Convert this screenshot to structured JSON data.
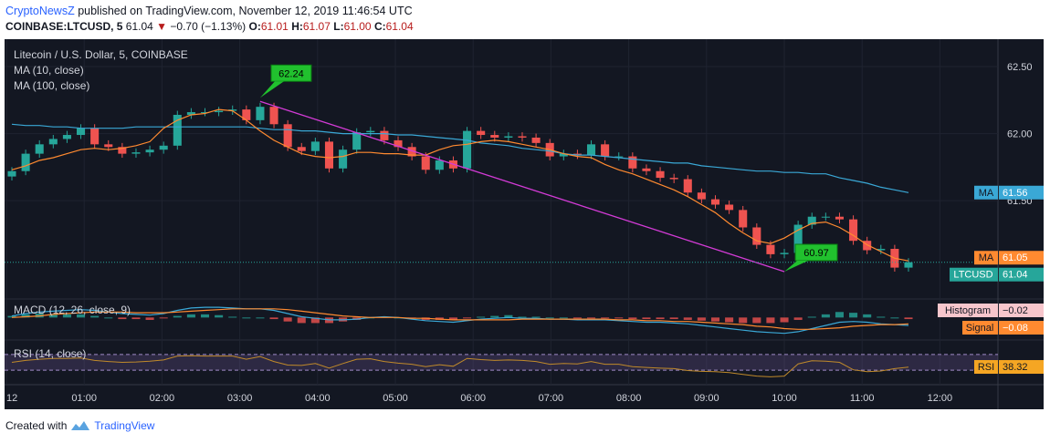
{
  "header": {
    "brand": "CryptoNewsZ",
    "published": " published on TradingView.com, November 12, 2019 11:46:54 UTC",
    "symbol": "COINBASE:LTCUSD, 5",
    "last": "61.04",
    "change": "−0.70 (−1.13%)",
    "o_label": "O:",
    "o": "61.01",
    "h_label": "H:",
    "h": "61.07",
    "l_label": "L:",
    "l": "61.00",
    "c_label": "C:",
    "c": "61.04"
  },
  "legend": {
    "title": "Litecoin / U.S. Dollar, 5, COINBASE",
    "ma10": "MA (10, close)",
    "ma100": "MA (100, close)"
  },
  "price_axis": {
    "ticks": [
      "62.50",
      "62.00",
      "61.50"
    ]
  },
  "badges": {
    "ma100": {
      "label": "MA",
      "value": "61.56"
    },
    "ma10": {
      "label": "MA",
      "value": "61.05"
    },
    "last": {
      "label": "LTCUSD",
      "value": "61.04"
    },
    "histogram": {
      "label": "Histogram",
      "value": "−0.02"
    },
    "signal": {
      "label": "Signal",
      "value": "−0.08"
    },
    "rsi": {
      "label": "RSI",
      "value": "38.32"
    }
  },
  "annotations": {
    "high": "62.24",
    "low": "60.97"
  },
  "indicators": {
    "macd_label": "MACD (12, 26, close, 9)",
    "rsi_label": "RSI (14, close)"
  },
  "time_axis": [
    "12",
    "01:00",
    "02:00",
    "03:00",
    "04:00",
    "05:00",
    "06:00",
    "07:00",
    "08:00",
    "09:00",
    "10:00",
    "11:00",
    "12:00"
  ],
  "footer": {
    "created": "Created with",
    "brand": "TradingView"
  },
  "colors": {
    "background": "#131722",
    "up": "#26a69a",
    "down": "#ef5350",
    "ma10": "#ff8a30",
    "ma100": "#3aa8d6",
    "trendline": "#d33bd6",
    "annotation": "#21c12e",
    "rsi": "#c08a2a"
  },
  "chart_data": {
    "type": "candlestick",
    "title": "Litecoin / U.S. Dollar, 5, COINBASE",
    "x_ticks": [
      "12",
      "01:00",
      "02:00",
      "03:00",
      "04:00",
      "05:00",
      "06:00",
      "07:00",
      "08:00",
      "09:00",
      "10:00",
      "11:00",
      "12:00"
    ],
    "y_ticks": [
      62.5,
      62.0,
      61.5
    ],
    "ylim": [
      60.8,
      62.65
    ],
    "last_price": 61.04,
    "ma10_last": 61.05,
    "ma100_last": 61.56,
    "period_high": 62.24,
    "period_low": 60.97,
    "close": [
      61.72,
      61.85,
      61.92,
      61.96,
      61.99,
      62.04,
      61.92,
      61.9,
      61.85,
      61.86,
      61.88,
      61.91,
      62.14,
      62.16,
      62.16,
      62.17,
      62.18,
      62.1,
      62.2,
      62.07,
      61.9,
      61.87,
      61.94,
      61.74,
      61.88,
      62.01,
      62.02,
      61.95,
      61.9,
      61.83,
      61.73,
      61.8,
      61.74,
      62.02,
      61.99,
      61.97,
      61.98,
      61.97,
      61.93,
      61.83,
      61.85,
      61.84,
      61.92,
      61.83,
      61.83,
      61.74,
      61.72,
      61.67,
      61.66,
      61.56,
      61.51,
      61.47,
      61.43,
      61.3,
      61.17,
      61.1,
      61.11,
      61.32,
      61.38,
      61.38,
      61.36,
      61.2,
      61.13,
      61.14,
      61.0,
      61.04
    ],
    "ma10": [
      61.73,
      61.76,
      61.8,
      61.82,
      61.85,
      61.88,
      61.89,
      61.88,
      61.89,
      61.91,
      61.94,
      62.04,
      62.1,
      62.14,
      62.15,
      62.18,
      62.17,
      62.1,
      62.02,
      61.95,
      61.9,
      61.85,
      61.83,
      61.82,
      61.83,
      61.86,
      61.86,
      61.85,
      61.85,
      61.84,
      61.84,
      61.88,
      61.91,
      61.92,
      61.94,
      61.95,
      61.94,
      61.92,
      61.9,
      61.88,
      61.85,
      61.83,
      61.82,
      61.77,
      61.73,
      61.7,
      61.66,
      61.62,
      61.58,
      61.53,
      61.47,
      61.41,
      61.33,
      61.26,
      61.2,
      61.18,
      61.22,
      61.28,
      61.33,
      61.34,
      61.3,
      61.24,
      61.17,
      61.12,
      61.07,
      61.05
    ],
    "ma100": [
      62.07,
      62.06,
      62.06,
      62.05,
      62.05,
      62.04,
      62.04,
      62.04,
      62.04,
      62.05,
      62.05,
      62.05,
      62.05,
      62.05,
      62.05,
      62.05,
      62.05,
      62.05,
      62.04,
      62.03,
      62.03,
      62.02,
      62.02,
      62.01,
      62.0,
      62.0,
      62.0,
      62.0,
      61.99,
      61.99,
      61.98,
      61.97,
      61.96,
      61.95,
      61.93,
      61.92,
      61.91,
      61.89,
      61.88,
      61.87,
      61.85,
      61.84,
      61.84,
      61.83,
      61.82,
      61.81,
      61.8,
      61.79,
      61.78,
      61.78,
      61.76,
      61.75,
      61.74,
      61.73,
      61.72,
      61.72,
      61.71,
      61.71,
      61.7,
      61.7,
      61.67,
      61.65,
      61.63,
      61.6,
      61.58,
      61.56
    ],
    "macd": [
      0.02,
      0.05,
      0.07,
      0.08,
      0.09,
      0.1,
      0.09,
      0.07,
      0.05,
      0.04,
      0.03,
      0.05,
      0.09,
      0.12,
      0.13,
      0.13,
      0.12,
      0.11,
      0.11,
      0.09,
      0.05,
      0.01,
      -0.01,
      -0.03,
      -0.03,
      -0.02,
      0.0,
      0.01,
      0.0,
      -0.02,
      -0.04,
      -0.05,
      -0.06,
      -0.04,
      -0.02,
      -0.01,
      0.0,
      -0.01,
      -0.01,
      -0.02,
      -0.02,
      -0.03,
      -0.03,
      -0.03,
      -0.04,
      -0.05,
      -0.06,
      -0.06,
      -0.07,
      -0.08,
      -0.1,
      -0.12,
      -0.14,
      -0.16,
      -0.18,
      -0.19,
      -0.2,
      -0.18,
      -0.14,
      -0.1,
      -0.06,
      -0.05,
      -0.06,
      -0.08,
      -0.09,
      -0.1
    ],
    "macd_signal": [
      0.0,
      0.01,
      0.02,
      0.04,
      0.05,
      0.06,
      0.07,
      0.07,
      0.07,
      0.06,
      0.06,
      0.06,
      0.07,
      0.08,
      0.09,
      0.1,
      0.11,
      0.11,
      0.11,
      0.11,
      0.1,
      0.08,
      0.06,
      0.04,
      0.02,
      0.01,
      0.0,
      0.0,
      0.0,
      -0.01,
      -0.01,
      -0.02,
      -0.03,
      -0.03,
      -0.03,
      -0.03,
      -0.03,
      -0.02,
      -0.02,
      -0.02,
      -0.02,
      -0.02,
      -0.02,
      -0.02,
      -0.03,
      -0.03,
      -0.04,
      -0.04,
      -0.05,
      -0.05,
      -0.06,
      -0.07,
      -0.08,
      -0.09,
      -0.11,
      -0.12,
      -0.14,
      -0.15,
      -0.15,
      -0.14,
      -0.13,
      -0.11,
      -0.1,
      -0.09,
      -0.09,
      -0.08
    ],
    "rsi": [
      50,
      55,
      58,
      60,
      60,
      61,
      55,
      52,
      50,
      51,
      53,
      56,
      66,
      67,
      66,
      66,
      66,
      58,
      65,
      52,
      43,
      42,
      47,
      35,
      47,
      58,
      59,
      52,
      48,
      45,
      39,
      44,
      40,
      60,
      57,
      55,
      56,
      55,
      52,
      45,
      47,
      46,
      52,
      45,
      45,
      39,
      37,
      35,
      34,
      29,
      27,
      26,
      24,
      19,
      15,
      13,
      15,
      46,
      54,
      53,
      50,
      31,
      26,
      28,
      34,
      38
    ],
    "rsi_last": 38.32,
    "rsi_bands": [
      70,
      30
    ]
  }
}
